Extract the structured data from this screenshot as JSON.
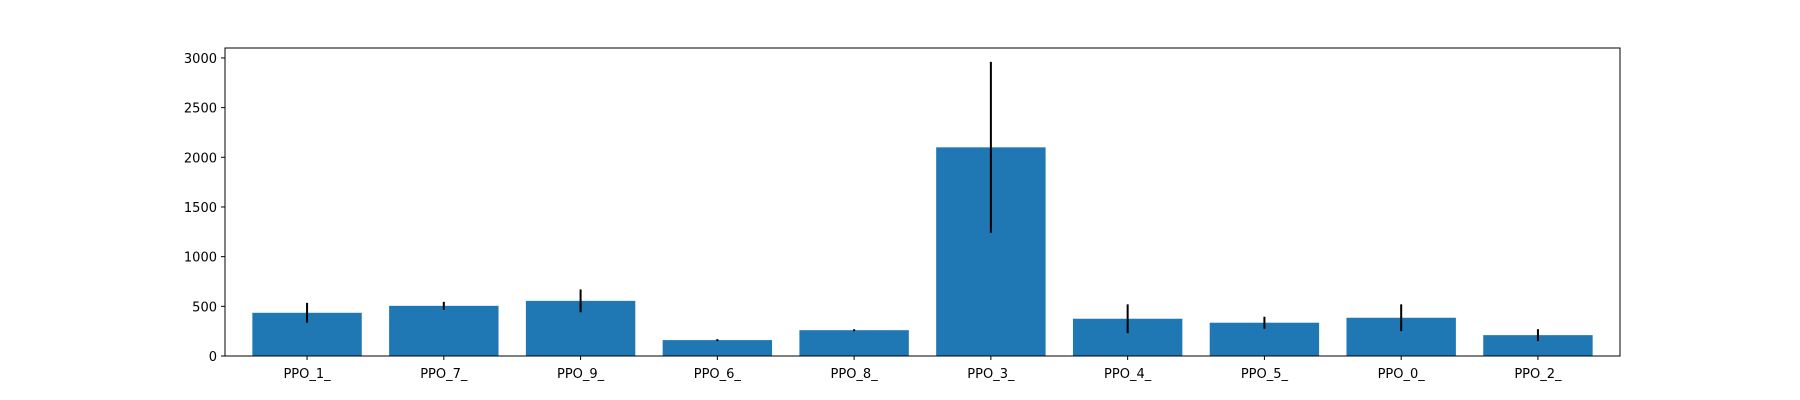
{
  "chart_data": {
    "type": "bar",
    "title": "",
    "xlabel": "",
    "ylabel": "",
    "categories": [
      "PPO_1_",
      "PPO_7_",
      "PPO_9_",
      "PPO_6_",
      "PPO_8_",
      "PPO_3_",
      "PPO_4_",
      "PPO_5_",
      "PPO_0_",
      "PPO_2_"
    ],
    "values": [
      435,
      505,
      555,
      160,
      260,
      2100,
      375,
      335,
      385,
      210
    ],
    "error_bars": [
      100,
      40,
      115,
      10,
      10,
      860,
      145,
      60,
      135,
      60
    ],
    "ylim": [
      0,
      3100
    ],
    "yticks": [
      0,
      500,
      1000,
      1500,
      2000,
      2500,
      3000
    ],
    "grid": false,
    "legend": false,
    "colors": {
      "bar": "#1f77b4",
      "error_bar": "#000000",
      "axis": "#000000"
    }
  }
}
